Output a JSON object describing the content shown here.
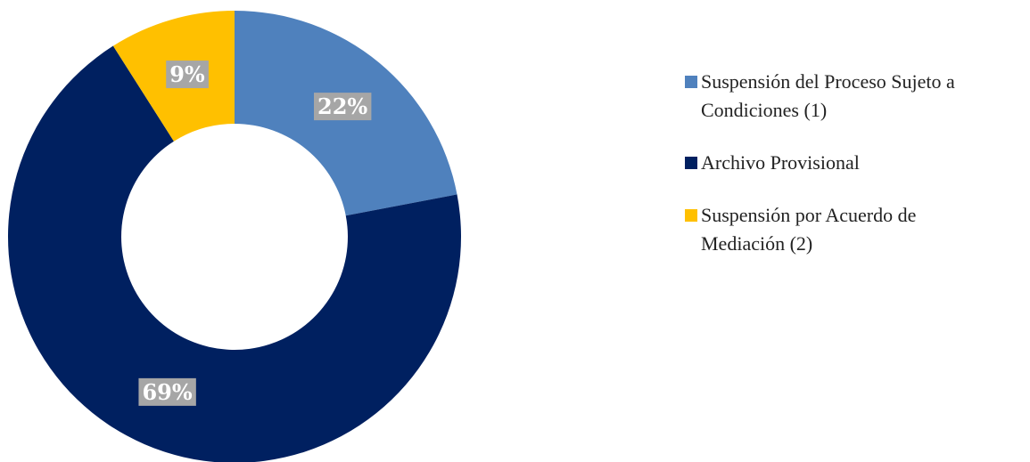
{
  "chart_data": {
    "type": "donut",
    "categories": [
      "Suspensión del Proceso Sujeto a Condiciones (1)",
      "Archivo Provisional",
      "Suspensión por Acuerdo de Mediación (2)"
    ],
    "values": [
      22,
      69,
      9
    ],
    "value_labels": [
      "22%",
      "69%",
      "9%"
    ],
    "colors": [
      "#4f81bd",
      "#002060",
      "#ffc000"
    ],
    "legend": "right"
  }
}
